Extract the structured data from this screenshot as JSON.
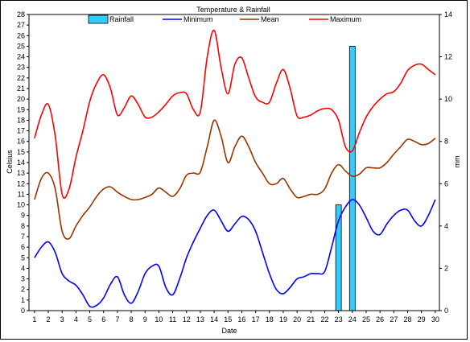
{
  "chart_data": {
    "type": "line",
    "title": "Temperature & Rainfall",
    "xlabel": "Date",
    "ylabel": "Celsius",
    "y2label": "mm",
    "x": [
      1,
      2,
      3,
      4,
      5,
      6,
      7,
      8,
      9,
      10,
      11,
      12,
      13,
      14,
      15,
      16,
      17,
      18,
      19,
      20,
      21,
      22,
      23,
      24,
      25,
      26,
      27,
      28,
      29,
      30
    ],
    "xlim": [
      0.6,
      30.3
    ],
    "ylim": [
      0,
      28
    ],
    "y2lim": [
      0,
      14
    ],
    "legend": "top",
    "grid": false,
    "legend_labels": [
      "Rainfall",
      "Minimum",
      "Mean",
      "Maximum"
    ],
    "colors": {
      "rainfall_fill": "#33ccff",
      "minimum": "#0000ff",
      "mean": "#993300",
      "maximum": "#ff0000"
    },
    "rainfall": {
      "name": "Rainfall",
      "axis": "secondary",
      "values": [
        0,
        0,
        0,
        0,
        0,
        0,
        0,
        0,
        0,
        0,
        0,
        0,
        0,
        0,
        0,
        0,
        0,
        0,
        0,
        0,
        0,
        0,
        5.0,
        12.5,
        0,
        0,
        0,
        0,
        0,
        0
      ]
    },
    "series": [
      {
        "name": "Minimum",
        "points": [
          [
            1,
            5.0
          ],
          [
            1.5,
            6.0
          ],
          [
            2,
            6.5
          ],
          [
            2.5,
            5.5
          ],
          [
            3,
            3.5
          ],
          [
            3.5,
            2.8
          ],
          [
            4,
            2.4
          ],
          [
            4.5,
            1.5
          ],
          [
            5,
            0.4
          ],
          [
            5.5,
            0.5
          ],
          [
            6,
            1.2
          ],
          [
            6.5,
            2.5
          ],
          [
            7,
            3.2
          ],
          [
            7.5,
            1.5
          ],
          [
            8,
            0.7
          ],
          [
            8.5,
            1.8
          ],
          [
            9,
            3.5
          ],
          [
            9.5,
            4.2
          ],
          [
            10,
            4.2
          ],
          [
            10.5,
            2.2
          ],
          [
            11,
            1.5
          ],
          [
            11.5,
            3.0
          ],
          [
            12,
            5.0
          ],
          [
            12.5,
            6.5
          ],
          [
            13,
            7.8
          ],
          [
            13.5,
            9.0
          ],
          [
            14,
            9.5
          ],
          [
            14.5,
            8.5
          ],
          [
            15,
            7.5
          ],
          [
            15.5,
            8.2
          ],
          [
            16,
            8.9
          ],
          [
            16.5,
            8.6
          ],
          [
            17,
            7.5
          ],
          [
            17.5,
            5.5
          ],
          [
            18,
            3.5
          ],
          [
            18.5,
            2.0
          ],
          [
            19,
            1.6
          ],
          [
            19.5,
            2.2
          ],
          [
            20,
            3.0
          ],
          [
            20.5,
            3.2
          ],
          [
            21,
            3.5
          ],
          [
            21.5,
            3.5
          ],
          [
            22,
            3.7
          ],
          [
            22.5,
            6.0
          ],
          [
            23,
            8.5
          ],
          [
            23.5,
            9.8
          ],
          [
            24,
            10.5
          ],
          [
            24.5,
            10.0
          ],
          [
            25,
            8.8
          ],
          [
            25.5,
            7.5
          ],
          [
            26,
            7.2
          ],
          [
            26.5,
            8.2
          ],
          [
            27,
            9.0
          ],
          [
            27.5,
            9.5
          ],
          [
            28,
            9.5
          ],
          [
            28.5,
            8.5
          ],
          [
            29,
            8.0
          ],
          [
            29.5,
            9.0
          ],
          [
            30,
            10.5
          ]
        ]
      },
      {
        "name": "Mean",
        "points": [
          [
            1,
            10.5
          ],
          [
            1.5,
            12.5
          ],
          [
            2,
            13.0
          ],
          [
            2.5,
            11.5
          ],
          [
            3,
            7.5
          ],
          [
            3.5,
            6.8
          ],
          [
            4,
            8.0
          ],
          [
            4.5,
            9.0
          ],
          [
            5,
            9.8
          ],
          [
            5.5,
            10.8
          ],
          [
            6,
            11.5
          ],
          [
            6.5,
            11.7
          ],
          [
            7,
            11.2
          ],
          [
            7.5,
            10.8
          ],
          [
            8,
            10.5
          ],
          [
            8.5,
            10.5
          ],
          [
            9,
            10.7
          ],
          [
            9.5,
            11.0
          ],
          [
            10,
            11.6
          ],
          [
            10.5,
            11.2
          ],
          [
            11,
            10.8
          ],
          [
            11.5,
            11.5
          ],
          [
            12,
            12.8
          ],
          [
            12.5,
            13.0
          ],
          [
            13,
            13.1
          ],
          [
            13.5,
            15.5
          ],
          [
            14,
            18.0
          ],
          [
            14.5,
            16.5
          ],
          [
            15,
            14.0
          ],
          [
            15.5,
            15.5
          ],
          [
            16,
            16.5
          ],
          [
            16.5,
            15.5
          ],
          [
            17,
            14.0
          ],
          [
            17.5,
            13.0
          ],
          [
            18,
            12.0
          ],
          [
            18.5,
            12.0
          ],
          [
            19,
            12.5
          ],
          [
            19.5,
            11.5
          ],
          [
            20,
            10.7
          ],
          [
            20.5,
            10.8
          ],
          [
            21,
            11.0
          ],
          [
            21.5,
            11.0
          ],
          [
            22,
            11.5
          ],
          [
            22.5,
            13.0
          ],
          [
            23,
            13.8
          ],
          [
            23.5,
            13.2
          ],
          [
            24,
            12.7
          ],
          [
            24.5,
            12.9
          ],
          [
            25,
            13.5
          ],
          [
            25.5,
            13.5
          ],
          [
            26,
            13.5
          ],
          [
            26.5,
            14.0
          ],
          [
            27,
            14.8
          ],
          [
            27.5,
            15.5
          ],
          [
            28,
            16.2
          ],
          [
            28.5,
            16.0
          ],
          [
            29,
            15.7
          ],
          [
            29.5,
            15.8
          ],
          [
            30,
            16.3
          ]
        ]
      },
      {
        "name": "Maximum",
        "points": [
          [
            1,
            16.3
          ],
          [
            1.5,
            18.5
          ],
          [
            2,
            19.5
          ],
          [
            2.5,
            16.5
          ],
          [
            3,
            11.0
          ],
          [
            3.5,
            11.5
          ],
          [
            4,
            14.5
          ],
          [
            4.5,
            17.0
          ],
          [
            5,
            19.8
          ],
          [
            5.5,
            21.5
          ],
          [
            6,
            22.3
          ],
          [
            6.5,
            21.0
          ],
          [
            7,
            18.5
          ],
          [
            7.5,
            19.2
          ],
          [
            8,
            20.3
          ],
          [
            8.5,
            19.5
          ],
          [
            9,
            18.3
          ],
          [
            9.5,
            18.3
          ],
          [
            10,
            18.8
          ],
          [
            10.5,
            19.5
          ],
          [
            11,
            20.3
          ],
          [
            11.5,
            20.6
          ],
          [
            12,
            20.5
          ],
          [
            12.5,
            19.0
          ],
          [
            13,
            18.8
          ],
          [
            13.5,
            24.0
          ],
          [
            14,
            26.5
          ],
          [
            14.5,
            23.0
          ],
          [
            15,
            20.5
          ],
          [
            15.5,
            23.3
          ],
          [
            16,
            23.9
          ],
          [
            16.5,
            22.0
          ],
          [
            17,
            20.2
          ],
          [
            17.5,
            19.7
          ],
          [
            18,
            19.7
          ],
          [
            18.5,
            21.5
          ],
          [
            19,
            22.8
          ],
          [
            19.5,
            21.0
          ],
          [
            20,
            18.4
          ],
          [
            20.5,
            18.3
          ],
          [
            21,
            18.5
          ],
          [
            21.5,
            18.9
          ],
          [
            22,
            19.1
          ],
          [
            22.5,
            19.0
          ],
          [
            23,
            18.0
          ],
          [
            23.5,
            15.5
          ],
          [
            24,
            15.1
          ],
          [
            24.5,
            16.8
          ],
          [
            25,
            18.3
          ],
          [
            25.5,
            19.3
          ],
          [
            26,
            20.0
          ],
          [
            26.5,
            20.5
          ],
          [
            27,
            20.7
          ],
          [
            27.5,
            21.5
          ],
          [
            28,
            22.7
          ],
          [
            28.5,
            23.2
          ],
          [
            29,
            23.3
          ],
          [
            29.5,
            22.8
          ],
          [
            30,
            22.3
          ]
        ]
      }
    ]
  }
}
